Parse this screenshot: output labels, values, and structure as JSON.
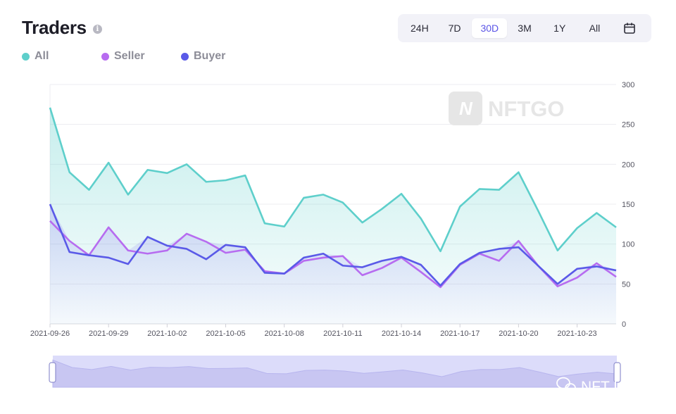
{
  "header": {
    "title": "Traders"
  },
  "range": {
    "options": [
      "24H",
      "7D",
      "30D",
      "3M",
      "1Y",
      "All"
    ],
    "active": "30D"
  },
  "watermark": {
    "text": "NFTGO"
  },
  "wechat_watermark": {
    "text": "NFT Labs"
  },
  "colors": {
    "all": "#5ecfcb",
    "seller": "#b76cf0",
    "buyer": "#5a5ae8",
    "active_tab": "#5a54e6"
  },
  "chart_data": {
    "type": "line",
    "title": "",
    "xlabel": "",
    "ylabel": "",
    "ylim": [
      0,
      300
    ],
    "yticks": [
      0,
      50,
      100,
      150,
      200,
      250,
      300
    ],
    "y_axis_position": "right",
    "grid": true,
    "legend_position": "top-left",
    "x": [
      "2021-09-26",
      "2021-09-27",
      "2021-09-28",
      "2021-09-29",
      "2021-09-30",
      "2021-10-01",
      "2021-10-02",
      "2021-10-03",
      "2021-10-04",
      "2021-10-05",
      "2021-10-06",
      "2021-10-07",
      "2021-10-08",
      "2021-10-09",
      "2021-10-10",
      "2021-10-11",
      "2021-10-12",
      "2021-10-13",
      "2021-10-14",
      "2021-10-15",
      "2021-10-16",
      "2021-10-17",
      "2021-10-18",
      "2021-10-19",
      "2021-10-20",
      "2021-10-21",
      "2021-10-22",
      "2021-10-23",
      "2021-10-24",
      "2021-10-25"
    ],
    "xtick_labels": [
      "2021-09-26",
      "2021-09-29",
      "2021-10-02",
      "2021-10-05",
      "2021-10-08",
      "2021-10-11",
      "2021-10-14",
      "2021-10-17",
      "2021-10-20",
      "2021-10-23"
    ],
    "series": [
      {
        "name": "All",
        "color": "#5ecfcb",
        "values": [
          271,
          190,
          168,
          202,
          162,
          193,
          189,
          200,
          178,
          180,
          186,
          126,
          122,
          158,
          162,
          152,
          127,
          144,
          163,
          132,
          91,
          147,
          169,
          168,
          190,
          142,
          92,
          120,
          139,
          121
        ]
      },
      {
        "name": "Seller",
        "color": "#b76cf0",
        "values": [
          129,
          104,
          86,
          121,
          92,
          88,
          92,
          113,
          103,
          89,
          93,
          66,
          63,
          79,
          83,
          85,
          61,
          70,
          83,
          65,
          46,
          74,
          88,
          79,
          104,
          73,
          47,
          58,
          76,
          59
        ]
      },
      {
        "name": "Buyer",
        "color": "#5a5ae8",
        "values": [
          150,
          90,
          86,
          83,
          75,
          109,
          98,
          94,
          81,
          99,
          96,
          64,
          63,
          83,
          88,
          73,
          71,
          79,
          84,
          74,
          48,
          75,
          89,
          94,
          96,
          73,
          50,
          69,
          72,
          67
        ]
      }
    ]
  }
}
